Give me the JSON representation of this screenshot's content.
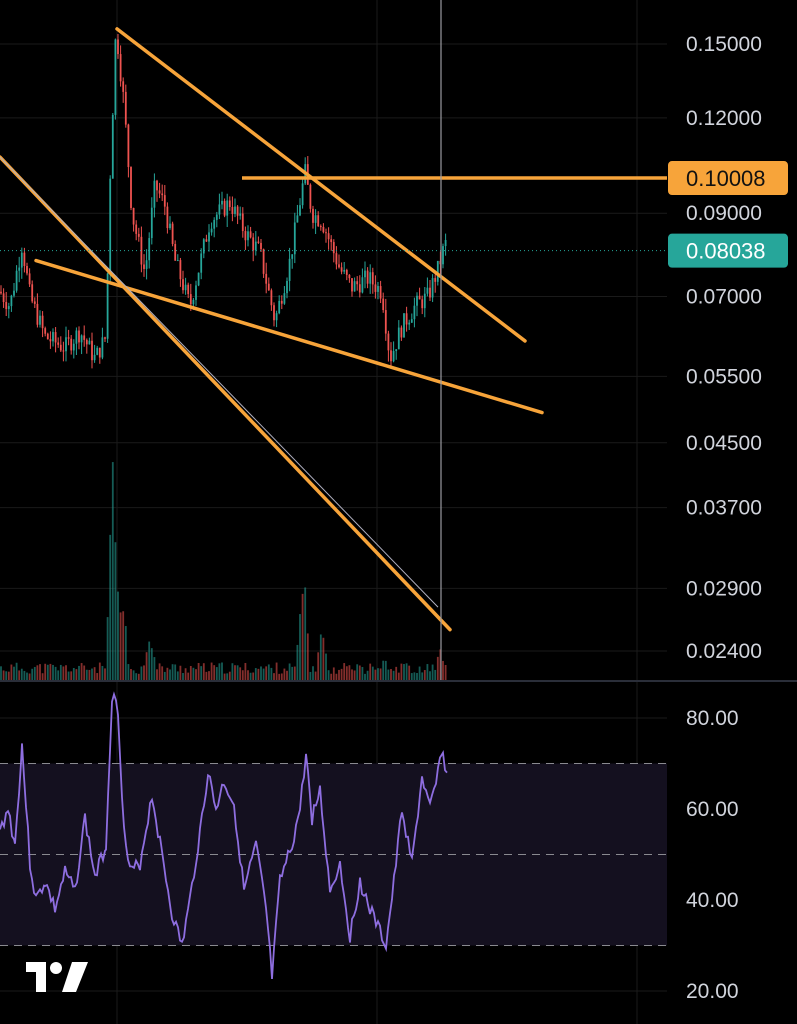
{
  "colors": {
    "background": "#000000",
    "grid": "#1a1a1a",
    "up_candle": "#26a69a",
    "down_candle": "#ef5350",
    "trendline": "#f7a43a",
    "rsi_line": "#8e6ee0",
    "rsi_band": "#14101f",
    "current_price_line": "#26a69a",
    "crosshair": "#9a9aa0",
    "label_text": "#d1d4dc"
  },
  "logo": {
    "icon": "tradingview-logo-icon"
  },
  "chart_data": [
    {
      "type": "candlestick",
      "title": "",
      "scale": "log",
      "ylim": [
        0.0215,
        0.165
      ],
      "y_ticks": [
        {
          "value": 0.15,
          "label": "0.15000"
        },
        {
          "value": 0.12,
          "label": "0.12000"
        },
        {
          "value": 0.09,
          "label": "0.09000"
        },
        {
          "value": 0.07,
          "label": "0.07000"
        },
        {
          "value": 0.055,
          "label": "0.05500"
        },
        {
          "value": 0.045,
          "label": "0.04500"
        },
        {
          "value": 0.037,
          "label": "0.03700"
        },
        {
          "value": 0.029,
          "label": "0.02900"
        },
        {
          "value": 0.024,
          "label": "0.02400"
        }
      ],
      "price_path": [
        [
          0,
          0.071
        ],
        [
          10,
          0.068
        ],
        [
          22,
          0.082
        ],
        [
          30,
          0.07
        ],
        [
          45,
          0.062
        ],
        [
          65,
          0.06
        ],
        [
          80,
          0.063
        ],
        [
          95,
          0.058
        ],
        [
          106,
          0.062
        ],
        [
          110,
          0.1
        ],
        [
          116,
          0.158
        ],
        [
          124,
          0.125
        ],
        [
          132,
          0.09
        ],
        [
          145,
          0.075
        ],
        [
          155,
          0.098
        ],
        [
          165,
          0.092
        ],
        [
          175,
          0.078
        ],
        [
          190,
          0.068
        ],
        [
          210,
          0.088
        ],
        [
          230,
          0.093
        ],
        [
          245,
          0.085
        ],
        [
          260,
          0.08
        ],
        [
          275,
          0.065
        ],
        [
          290,
          0.078
        ],
        [
          305,
          0.102
        ],
        [
          312,
          0.09
        ],
        [
          322,
          0.088
        ],
        [
          340,
          0.076
        ],
        [
          352,
          0.072
        ],
        [
          368,
          0.074
        ],
        [
          382,
          0.071
        ],
        [
          390,
          0.058
        ],
        [
          402,
          0.064
        ],
        [
          415,
          0.068
        ],
        [
          428,
          0.07
        ],
        [
          438,
          0.076
        ],
        [
          445,
          0.082
        ]
      ],
      "current_price": {
        "value": 0.08038,
        "label": "0.08038"
      },
      "horizontal_level": {
        "value": 0.10008,
        "label": "0.10008",
        "x_start": 242
      },
      "trendlines": [
        {
          "name": "upper-resistance",
          "points": [
            [
              117,
              0.157
            ],
            [
              525,
              0.0612
            ]
          ]
        },
        {
          "name": "lower-support",
          "points": [
            [
              36,
              0.078
            ],
            [
              542,
              0.0493
            ]
          ]
        },
        {
          "name": "steep-descending",
          "points": [
            [
              0,
              0.1066
            ],
            [
              450,
              0.0256
            ]
          ]
        }
      ],
      "thin_line": {
        "points": [
          [
            0,
            0.1066
          ],
          [
            438,
            0.0274
          ]
        ]
      },
      "crosshair_x": 441,
      "volume_spikes": [
        [
          113,
          1.0
        ],
        [
          116,
          0.7
        ],
        [
          122,
          0.45
        ],
        [
          150,
          0.25
        ],
        [
          303,
          0.55
        ],
        [
          322,
          0.25
        ],
        [
          385,
          0.12
        ],
        [
          440,
          0.15
        ]
      ]
    },
    {
      "type": "line",
      "title": "",
      "ylim": [
        17,
        85
      ],
      "y_ticks": [
        {
          "value": 80,
          "label": "80.00"
        },
        {
          "value": 60,
          "label": "60.00"
        },
        {
          "value": 40,
          "label": "40.00"
        },
        {
          "value": 20,
          "label": "20.00"
        }
      ],
      "bands": [
        70,
        50,
        30
      ],
      "series": [
        {
          "points": [
            [
              0,
              55
            ],
            [
              8,
              60
            ],
            [
              15,
              52
            ],
            [
              22,
              74
            ],
            [
              30,
              48
            ],
            [
              36,
              40
            ],
            [
              45,
              44
            ],
            [
              55,
              38
            ],
            [
              65,
              46
            ],
            [
              75,
              42
            ],
            [
              85,
              58
            ],
            [
              95,
              45
            ],
            [
              106,
              52
            ],
            [
              112,
              85
            ],
            [
              118,
              82
            ],
            [
              124,
              55
            ],
            [
              130,
              46
            ],
            [
              140,
              48
            ],
            [
              152,
              63
            ],
            [
              162,
              50
            ],
            [
              172,
              37
            ],
            [
              182,
              30
            ],
            [
              190,
              40
            ],
            [
              200,
              55
            ],
            [
              208,
              68
            ],
            [
              216,
              60
            ],
            [
              224,
              66
            ],
            [
              234,
              61
            ],
            [
              244,
              42
            ],
            [
              256,
              52
            ],
            [
              266,
              38
            ],
            [
              272,
              23
            ],
            [
              280,
              44
            ],
            [
              292,
              52
            ],
            [
              300,
              60
            ],
            [
              306,
              72
            ],
            [
              312,
              58
            ],
            [
              320,
              64
            ],
            [
              330,
              42
            ],
            [
              340,
              48
            ],
            [
              350,
              32
            ],
            [
              360,
              44
            ],
            [
              370,
              38
            ],
            [
              380,
              33
            ],
            [
              386,
              30
            ],
            [
              394,
              44
            ],
            [
              402,
              60
            ],
            [
              412,
              48
            ],
            [
              422,
              67
            ],
            [
              430,
              60
            ],
            [
              436,
              65
            ],
            [
              441,
              73
            ],
            [
              447,
              68
            ]
          ]
        }
      ]
    }
  ]
}
